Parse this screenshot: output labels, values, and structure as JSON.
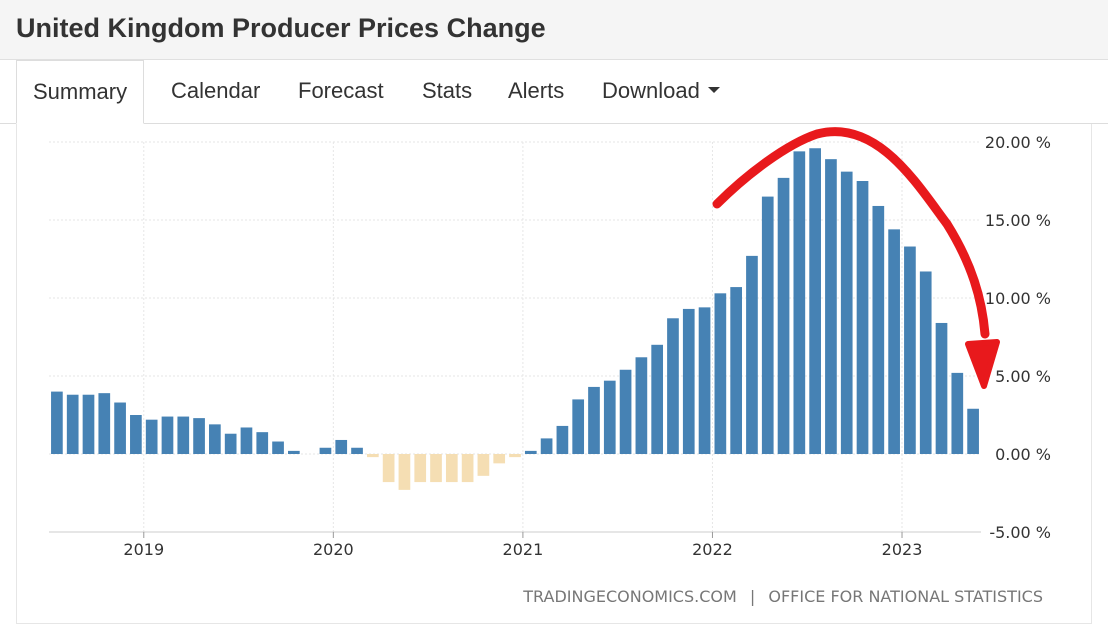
{
  "header": {
    "title": "United Kingdom Producer Prices Change"
  },
  "tabs": [
    {
      "label": "Summary",
      "active": true
    },
    {
      "label": "Calendar"
    },
    {
      "label": "Forecast"
    },
    {
      "label": "Stats"
    },
    {
      "label": "Alerts"
    },
    {
      "label": "Download",
      "dropdown": true
    }
  ],
  "source": {
    "site": "TRADINGECONOMICS.COM",
    "separator": "|",
    "office": "OFFICE FOR NATIONAL STATISTICS"
  },
  "colors": {
    "positive": "#4682b4",
    "negative": "#f5deb3",
    "annotation": "#e8191c",
    "grid": "#e6e6e6"
  },
  "chart_data": {
    "type": "bar",
    "categories": [
      "2018-07",
      "2018-08",
      "2018-09",
      "2018-10",
      "2018-11",
      "2018-12",
      "2019-01",
      "2019-02",
      "2019-03",
      "2019-04",
      "2019-05",
      "2019-06",
      "2019-07",
      "2019-08",
      "2019-09",
      "2019-10",
      "2019-11",
      "2019-12",
      "2020-01",
      "2020-02",
      "2020-03",
      "2020-04",
      "2020-05",
      "2020-06",
      "2020-07",
      "2020-08",
      "2020-09",
      "2020-10",
      "2020-11",
      "2020-12",
      "2021-01",
      "2021-02",
      "2021-03",
      "2021-04",
      "2021-05",
      "2021-06",
      "2021-07",
      "2021-08",
      "2021-09",
      "2021-10",
      "2021-11",
      "2021-12",
      "2022-01",
      "2022-02",
      "2022-03",
      "2022-04",
      "2022-05",
      "2022-06",
      "2022-07",
      "2022-08",
      "2022-09",
      "2022-10",
      "2022-11",
      "2022-12",
      "2023-01",
      "2023-02",
      "2023-03",
      "2023-04",
      "2023-05"
    ],
    "values": [
      4.0,
      3.8,
      3.8,
      3.9,
      3.3,
      2.5,
      2.2,
      2.4,
      2.4,
      2.3,
      1.9,
      1.3,
      1.7,
      1.4,
      0.8,
      0.2,
      0.0,
      0.4,
      0.9,
      0.4,
      -0.2,
      -1.8,
      -2.3,
      -1.8,
      -1.8,
      -1.8,
      -1.8,
      -1.4,
      -0.6,
      -0.2,
      0.2,
      1.0,
      1.8,
      3.5,
      4.3,
      4.7,
      5.4,
      6.2,
      7.0,
      8.7,
      9.3,
      9.4,
      10.3,
      10.7,
      12.7,
      16.5,
      17.7,
      19.4,
      19.6,
      18.9,
      18.1,
      17.5,
      15.9,
      14.4,
      13.3,
      11.7,
      8.4,
      5.2,
      2.9
    ],
    "ylim": [
      -5,
      20
    ],
    "yticks": [
      {
        "value": 20,
        "label": "20.00 %"
      },
      {
        "value": 15,
        "label": "15.00 %"
      },
      {
        "value": 10,
        "label": "10.00 %"
      },
      {
        "value": 5,
        "label": "5.00 %"
      },
      {
        "value": 0,
        "label": "0.00 %"
      },
      {
        "value": -5,
        "label": "-5.00 %"
      }
    ],
    "xticks": [
      {
        "category": "2019-01",
        "label": "2019"
      },
      {
        "category": "2020-01",
        "label": "2020"
      },
      {
        "category": "2021-01",
        "label": "2021"
      },
      {
        "category": "2022-01",
        "label": "2022"
      },
      {
        "category": "2023-01",
        "label": "2023"
      }
    ],
    "grid": true,
    "axis_position": "right"
  }
}
